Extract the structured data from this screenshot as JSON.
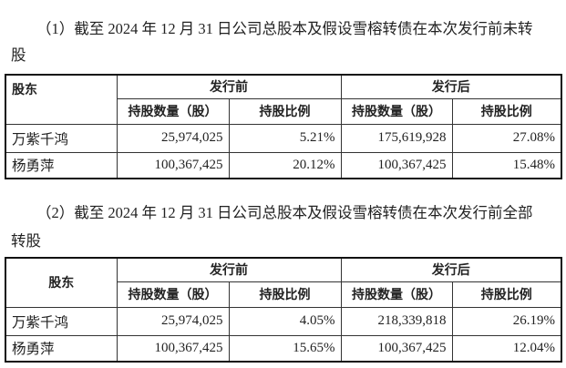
{
  "section1": {
    "text_line1": "（1）截至 2024 年 12 月 31 日公司总股本及假设雪榕转债在本次发行前未转",
    "text_line2": "股",
    "table": {
      "header_shareholder": "股东",
      "header_before": "发行前",
      "header_after": "发行后",
      "sub_headers": [
        "持股数量（股）",
        "持股比例",
        "持股数量（股）",
        "持股比例"
      ],
      "rows": [
        {
          "name": "万紫千鸿",
          "before_shares": "25,974,025",
          "before_ratio": "5.21%",
          "after_shares": "175,619,928",
          "after_ratio": "27.08%"
        },
        {
          "name": "杨勇萍",
          "before_shares": "100,367,425",
          "before_ratio": "20.12%",
          "after_shares": "100,367,425",
          "after_ratio": "15.48%"
        }
      ]
    }
  },
  "section2": {
    "text_line1": "（2）截至 2024 年 12 月 31 日公司总股本及假设雪榕转债在本次发行前全部",
    "text_line2": "转股",
    "table": {
      "header_shareholder": "股东",
      "header_before": "发行前",
      "header_after": "发行后",
      "sub_headers": [
        "持股数量（股）",
        "持股比例",
        "持股数量（股）",
        "持股比例"
      ],
      "rows": [
        {
          "name": "万紫千鸿",
          "before_shares": "25,974,025",
          "before_ratio": "4.05%",
          "after_shares": "218,339,818",
          "after_ratio": "26.19%"
        },
        {
          "name": "杨勇萍",
          "before_shares": "100,367,425",
          "before_ratio": "15.65%",
          "after_shares": "100,367,425",
          "after_ratio": "12.04%"
        }
      ]
    }
  }
}
